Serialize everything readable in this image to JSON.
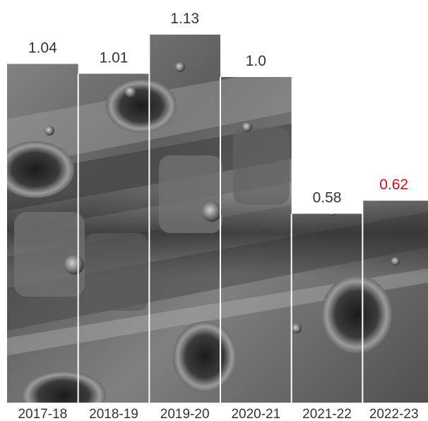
{
  "chart_data": {
    "type": "bar",
    "categories": [
      "2017-18",
      "2018-19",
      "2019-20",
      "2020-21",
      "2021-22",
      "2022-23"
    ],
    "values": [
      1.04,
      1.01,
      1.13,
      1.0,
      0.58,
      0.62
    ],
    "value_labels": [
      "1.04",
      "1.01",
      "1.13",
      "1.0",
      "0.58",
      "0.62"
    ],
    "highlight_index": 5,
    "highlight_color": "#d0101b",
    "label_color": "#333333",
    "bar_fill": "engine-cylinder-head-photo",
    "ylim": [
      0,
      1.13
    ],
    "grid": false,
    "legend": "none"
  }
}
